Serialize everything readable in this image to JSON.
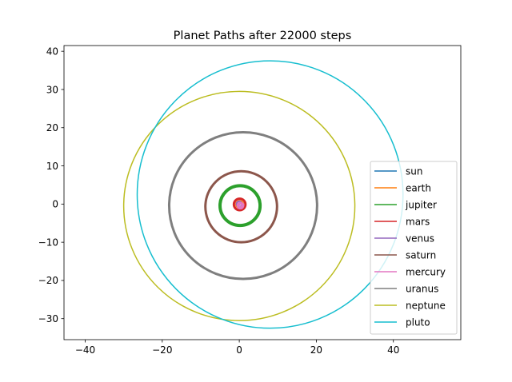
{
  "chart_data": {
    "type": "line",
    "title": "Planet Paths after 22000 steps",
    "xlabel": "",
    "ylabel": "",
    "xlim": [
      -45.5,
      57.5
    ],
    "ylim": [
      -35.5,
      41.5
    ],
    "xticks": [
      -40,
      -20,
      0,
      20,
      40
    ],
    "yticks": [
      -30,
      -20,
      -10,
      0,
      10,
      20,
      30,
      40
    ],
    "grid": false,
    "legend": "lower-right",
    "series": [
      {
        "name": "sun",
        "color": "#1f77b4",
        "orbit": {
          "cx": 0.0,
          "cy": 0.0,
          "rx": 0.15,
          "ry": 0.15,
          "width": 1.5
        }
      },
      {
        "name": "earth",
        "color": "#ff7f0e",
        "orbit": {
          "cx": 0.1,
          "cy": -0.1,
          "rx": 1.0,
          "ry": 1.0,
          "width": 1.5
        }
      },
      {
        "name": "jupiter",
        "color": "#2ca02c",
        "orbit": {
          "cx": 0.2,
          "cy": -0.4,
          "rx": 5.2,
          "ry": 5.2,
          "width": 4
        }
      },
      {
        "name": "mars",
        "color": "#d62728",
        "orbit": {
          "cx": 0.1,
          "cy": -0.1,
          "rx": 1.5,
          "ry": 1.5,
          "width": 3
        }
      },
      {
        "name": "venus",
        "color": "#9467bd",
        "orbit": {
          "cx": 0.0,
          "cy": 0.0,
          "rx": 0.72,
          "ry": 0.72,
          "width": 2
        }
      },
      {
        "name": "saturn",
        "color": "#8c564b",
        "orbit": {
          "cx": 0.5,
          "cy": -0.7,
          "rx": 9.3,
          "ry": 9.3,
          "width": 3
        }
      },
      {
        "name": "mercury",
        "color": "#e377c2",
        "orbit": {
          "cx": 0.3,
          "cy": -0.4,
          "rx": 0.6,
          "ry": 0.6,
          "width": 4
        }
      },
      {
        "name": "uranus",
        "color": "#7f7f7f",
        "orbit": {
          "cx": 1.0,
          "cy": -0.4,
          "rx": 19.2,
          "ry": 19.2,
          "width": 3
        }
      },
      {
        "name": "neptune",
        "color": "#bcbd22",
        "orbit": {
          "cx": 0.0,
          "cy": -0.5,
          "rx": 30.0,
          "ry": 30.0,
          "width": 1.5
        }
      },
      {
        "name": "pluto",
        "color": "#17becf",
        "orbit": {
          "cx": 8.0,
          "cy": 2.5,
          "rx": 34.5,
          "ry": 35.0,
          "width": 1.5
        }
      }
    ]
  }
}
